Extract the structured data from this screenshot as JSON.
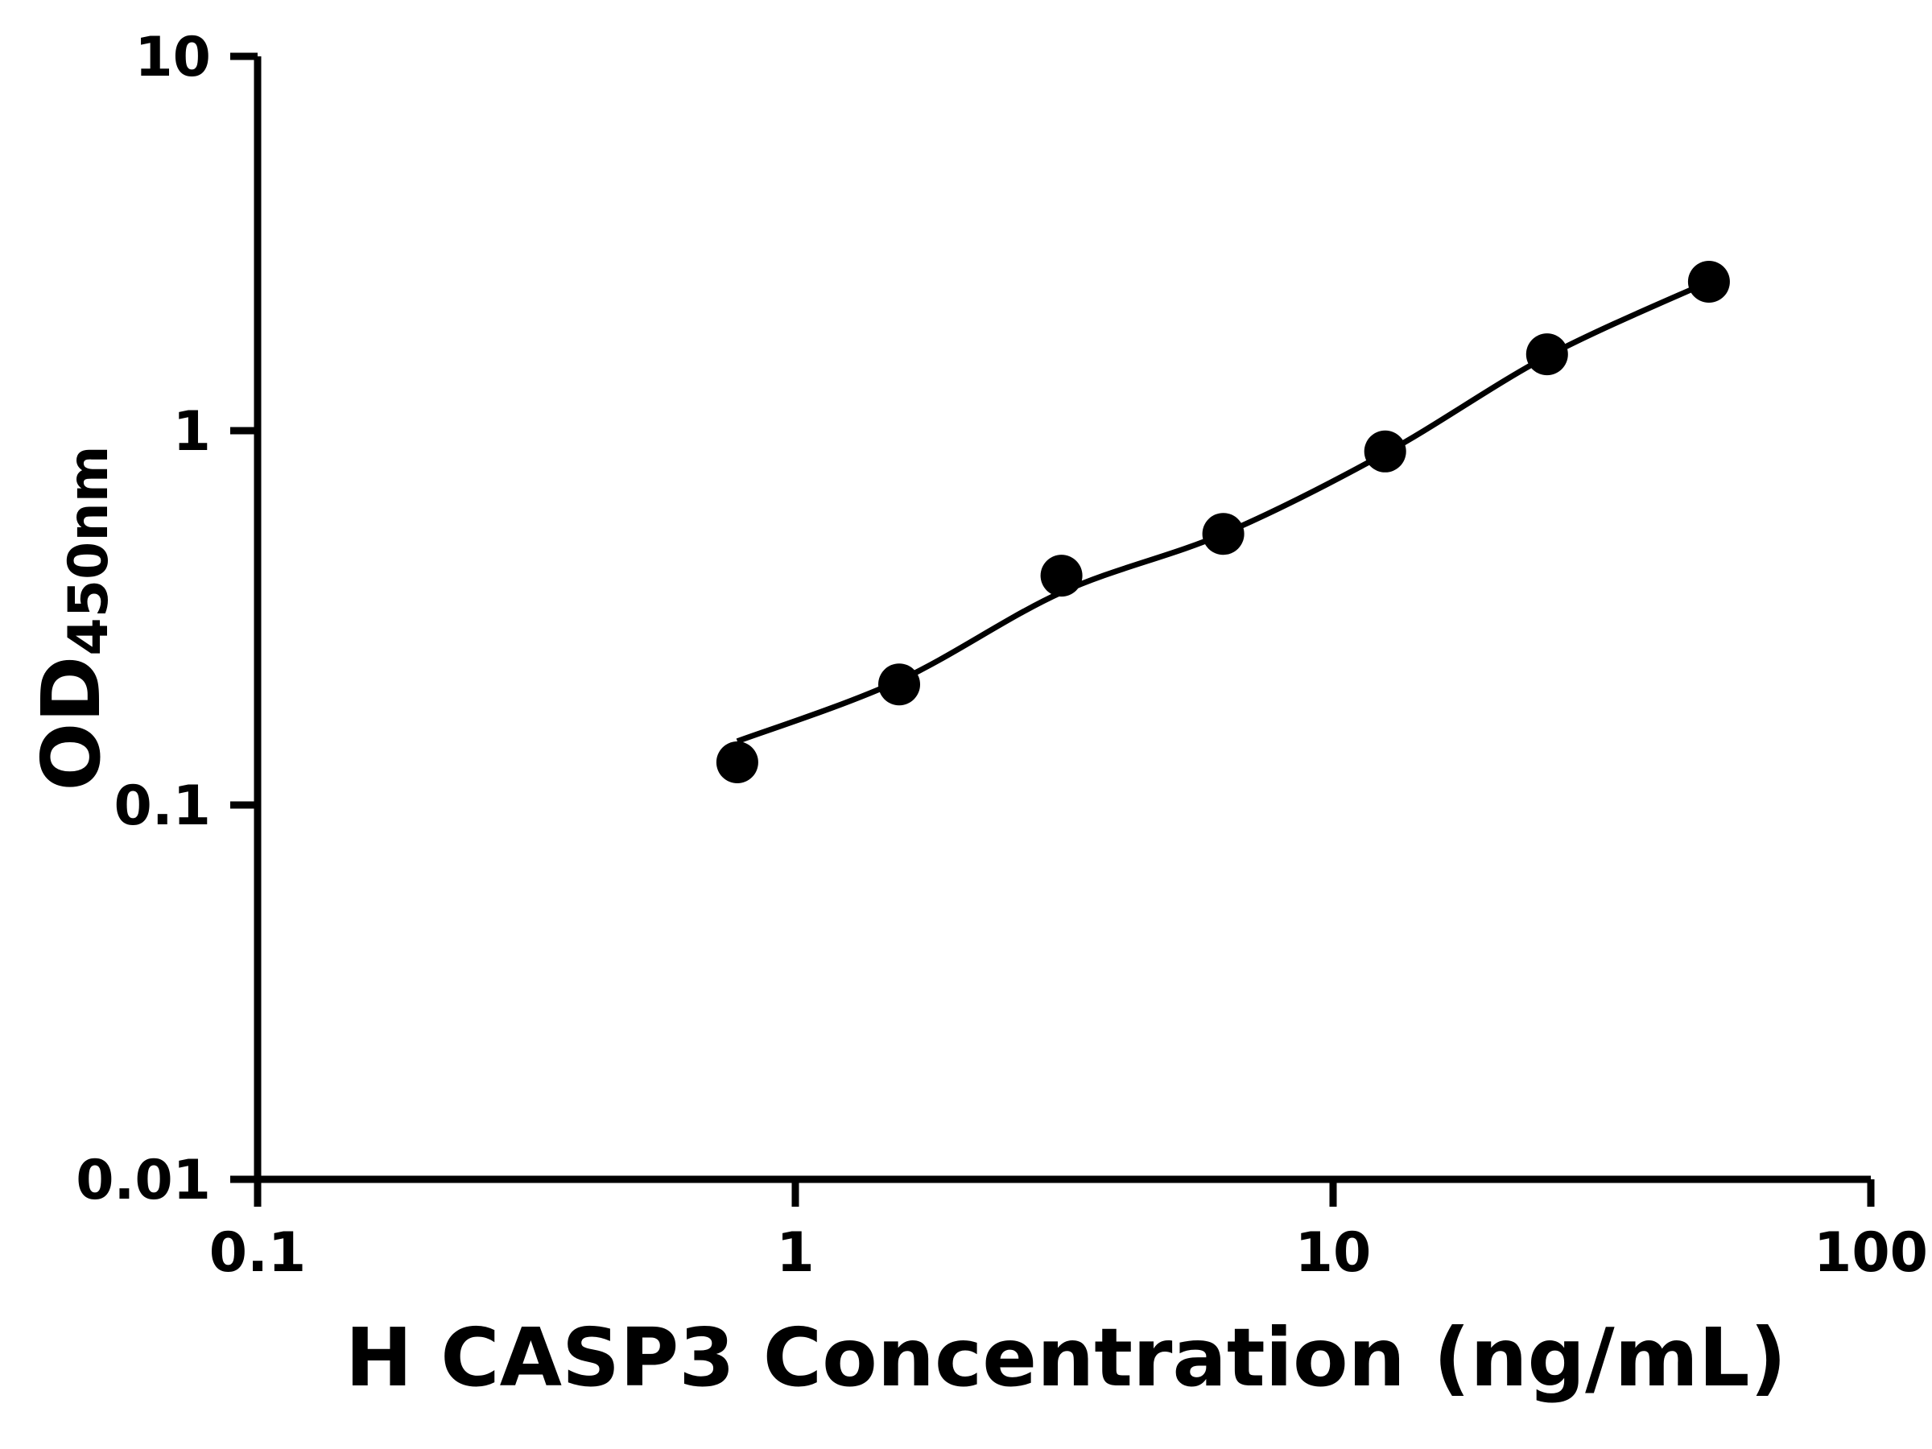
{
  "figure": {
    "background_color": "#ffffff"
  },
  "chart_data": {
    "type": "scatter",
    "title": "",
    "xlabel": "H CASP3 Concentration (ng/mL)",
    "ylabel_base": "OD",
    "ylabel_sub": "450nm",
    "x_scale": "log",
    "y_scale": "log",
    "xlim": [
      0.1,
      100
    ],
    "ylim": [
      0.01,
      10
    ],
    "x_ticks": {
      "values": [
        0.1,
        1,
        10,
        100
      ],
      "labels": [
        "0.1",
        "1",
        "10",
        "100"
      ]
    },
    "y_ticks": {
      "values": [
        0.01,
        0.1,
        1,
        10
      ],
      "labels": [
        "0.01",
        "0.1",
        "1",
        "10"
      ]
    },
    "points": {
      "x": [
        0.78,
        1.56,
        3.125,
        6.25,
        12.5,
        25,
        50
      ],
      "y": [
        0.13,
        0.21,
        0.41,
        0.53,
        0.88,
        1.6,
        2.5
      ]
    },
    "fit_curve": {
      "x": [
        0.78,
        1.56,
        3.125,
        6.25,
        12.5,
        25,
        50
      ],
      "y": [
        0.148,
        0.215,
        0.37,
        0.53,
        0.87,
        1.58,
        2.5
      ]
    },
    "grid": false,
    "legend": false,
    "marker_color": "#000000",
    "line_color": "#000000",
    "axis_color": "#000000",
    "background_color": "#ffffff"
  }
}
